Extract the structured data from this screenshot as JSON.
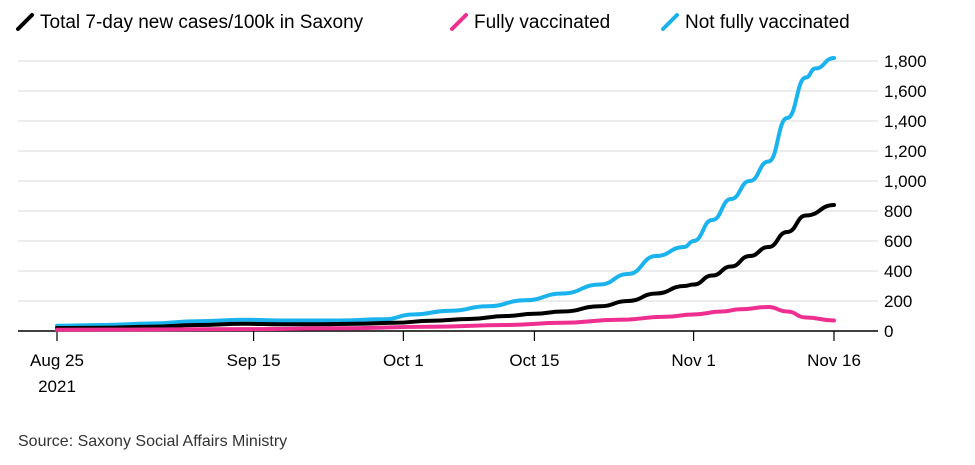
{
  "chart_data": {
    "type": "line",
    "source": "Source: Saxony Social Affairs Ministry",
    "x_ticks": [
      {
        "date": "2021-08-25",
        "label": "Aug 25",
        "sublabel": "2021"
      },
      {
        "date": "2021-09-15",
        "label": "Sep 15",
        "sublabel": ""
      },
      {
        "date": "2021-10-01",
        "label": "Oct 1",
        "sublabel": ""
      },
      {
        "date": "2021-10-15",
        "label": "Oct 15",
        "sublabel": ""
      },
      {
        "date": "2021-11-01",
        "label": "Nov 1",
        "sublabel": ""
      },
      {
        "date": "2021-11-16",
        "label": "Nov 16",
        "sublabel": ""
      }
    ],
    "y_ticks": [
      "0",
      "200",
      "400",
      "600",
      "800",
      "1,000",
      "1,200",
      "1,400",
      "1,600",
      "1,800"
    ],
    "xlim": [
      "2021-08-25",
      "2021-11-16"
    ],
    "ylim": [
      0,
      1900
    ],
    "y_axis_side": "right",
    "grid": "horizontal",
    "legend_placement": "top-left",
    "series": [
      {
        "name": "Total 7-day new cases/100k in Saxony",
        "color": "#000000",
        "points": [
          [
            "2021-08-25",
            20
          ],
          [
            "2021-08-30",
            22
          ],
          [
            "2021-09-04",
            28
          ],
          [
            "2021-09-09",
            40
          ],
          [
            "2021-09-14",
            48
          ],
          [
            "2021-09-18",
            45
          ],
          [
            "2021-09-22",
            45
          ],
          [
            "2021-09-26",
            48
          ],
          [
            "2021-09-30",
            55
          ],
          [
            "2021-10-04",
            68
          ],
          [
            "2021-10-08",
            80
          ],
          [
            "2021-10-12",
            100
          ],
          [
            "2021-10-15",
            115
          ],
          [
            "2021-10-18",
            130
          ],
          [
            "2021-10-22",
            165
          ],
          [
            "2021-10-25",
            200
          ],
          [
            "2021-10-28",
            250
          ],
          [
            "2021-10-31",
            300
          ],
          [
            "2021-11-01",
            310
          ],
          [
            "2021-11-03",
            370
          ],
          [
            "2021-11-05",
            430
          ],
          [
            "2021-11-07",
            500
          ],
          [
            "2021-11-09",
            560
          ],
          [
            "2021-11-11",
            660
          ],
          [
            "2021-11-13",
            770
          ],
          [
            "2021-11-16",
            840
          ]
        ]
      },
      {
        "name": "Fully vaccinated",
        "color": "#ef2f8f",
        "points": [
          [
            "2021-08-25",
            8
          ],
          [
            "2021-09-04",
            10
          ],
          [
            "2021-09-14",
            13
          ],
          [
            "2021-09-24",
            18
          ],
          [
            "2021-10-04",
            28
          ],
          [
            "2021-10-12",
            40
          ],
          [
            "2021-10-18",
            55
          ],
          [
            "2021-10-24",
            75
          ],
          [
            "2021-10-29",
            95
          ],
          [
            "2021-11-01",
            110
          ],
          [
            "2021-11-04",
            130
          ],
          [
            "2021-11-06",
            145
          ],
          [
            "2021-11-09",
            160
          ],
          [
            "2021-11-11",
            130
          ],
          [
            "2021-11-13",
            90
          ],
          [
            "2021-11-16",
            70
          ]
        ]
      },
      {
        "name": "Not fully vaccinated",
        "color": "#1ab3ee",
        "points": [
          [
            "2021-08-25",
            35
          ],
          [
            "2021-08-30",
            40
          ],
          [
            "2021-09-04",
            50
          ],
          [
            "2021-09-09",
            65
          ],
          [
            "2021-09-14",
            75
          ],
          [
            "2021-09-18",
            70
          ],
          [
            "2021-09-24",
            70
          ],
          [
            "2021-09-29",
            78
          ],
          [
            "2021-10-02",
            110
          ],
          [
            "2021-10-06",
            135
          ],
          [
            "2021-10-10",
            165
          ],
          [
            "2021-10-14",
            205
          ],
          [
            "2021-10-18",
            250
          ],
          [
            "2021-10-22",
            310
          ],
          [
            "2021-10-25",
            380
          ],
          [
            "2021-10-28",
            500
          ],
          [
            "2021-10-31",
            560
          ],
          [
            "2021-11-01",
            600
          ],
          [
            "2021-11-03",
            740
          ],
          [
            "2021-11-05",
            880
          ],
          [
            "2021-11-07",
            1000
          ],
          [
            "2021-11-09",
            1130
          ],
          [
            "2021-11-11",
            1420
          ],
          [
            "2021-11-13",
            1690
          ],
          [
            "2021-11-14",
            1750
          ],
          [
            "2021-11-16",
            1820
          ]
        ]
      }
    ]
  }
}
